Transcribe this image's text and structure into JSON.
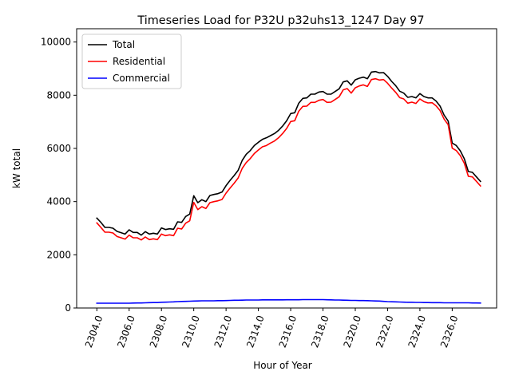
{
  "chart_data": {
    "type": "line",
    "title": "Timeseries Load for P32U p32uhs13_1247  Day 97",
    "xlabel": "Hour of Year",
    "ylabel": "kW total",
    "xlim": [
      2302.75,
      2328.75
    ],
    "ylim": [
      0,
      10500
    ],
    "xticks": [
      2304,
      2306,
      2308,
      2310,
      2312,
      2314,
      2316,
      2318,
      2320,
      2322,
      2324,
      2326
    ],
    "xtick_labels": [
      "2304.0",
      "2306.0",
      "2308.0",
      "2310.0",
      "2312.0",
      "2314.0",
      "2316.0",
      "2318.0",
      "2320.0",
      "2322.0",
      "2324.0",
      "2326.0"
    ],
    "yticks": [
      0,
      2000,
      4000,
      6000,
      8000,
      10000
    ],
    "ytick_labels": [
      "0",
      "2000",
      "4000",
      "6000",
      "8000",
      "10000"
    ],
    "legend_position": "top-left",
    "x_start": 2304.0,
    "x_step": 0.25,
    "series": [
      {
        "name": "Total",
        "color": "#000000",
        "values": [
          3380,
          3220,
          3030,
          3030,
          3000,
          2880,
          2830,
          2780,
          2940,
          2840,
          2840,
          2740,
          2870,
          2780,
          2810,
          2780,
          3010,
          2950,
          2980,
          2960,
          3240,
          3220,
          3440,
          3530,
          4220,
          3960,
          4070,
          4000,
          4230,
          4270,
          4300,
          4360,
          4600,
          4800,
          4980,
          5180,
          5550,
          5780,
          5920,
          6110,
          6230,
          6340,
          6400,
          6480,
          6560,
          6680,
          6840,
          7040,
          7310,
          7340,
          7700,
          7880,
          7900,
          8040,
          8040,
          8120,
          8140,
          8040,
          8040,
          8140,
          8240,
          8500,
          8540,
          8380,
          8580,
          8640,
          8680,
          8620,
          8870,
          8890,
          8840,
          8850,
          8710,
          8520,
          8360,
          8150,
          8080,
          7920,
          7950,
          7900,
          8060,
          7950,
          7900,
          7900,
          7780,
          7590,
          7250,
          7030,
          6200,
          6110,
          5910,
          5610,
          5130,
          5100,
          4930,
          4760
        ]
      },
      {
        "name": "Residential",
        "color": "#ff0000",
        "values": [
          3200,
          3030,
          2850,
          2850,
          2820,
          2690,
          2640,
          2590,
          2740,
          2640,
          2640,
          2560,
          2670,
          2570,
          2600,
          2570,
          2780,
          2720,
          2750,
          2720,
          3000,
          2970,
          3190,
          3280,
          3970,
          3700,
          3810,
          3740,
          3960,
          4000,
          4030,
          4080,
          4320,
          4510,
          4690,
          4890,
          5250,
          5470,
          5620,
          5810,
          5940,
          6060,
          6110,
          6200,
          6280,
          6400,
          6560,
          6750,
          7010,
          7040,
          7400,
          7580,
          7590,
          7730,
          7730,
          7810,
          7840,
          7730,
          7740,
          7840,
          7940,
          8200,
          8250,
          8080,
          8280,
          8350,
          8390,
          8330,
          8590,
          8620,
          8570,
          8590,
          8450,
          8270,
          8110,
          7910,
          7860,
          7700,
          7740,
          7690,
          7860,
          7760,
          7710,
          7720,
          7600,
          7420,
          7100,
          6890,
          6010,
          5920,
          5730,
          5440,
          4950,
          4930,
          4760,
          4590
        ]
      },
      {
        "name": "Commercial",
        "color": "#0000ff",
        "values": [
          180,
          180,
          180,
          180,
          180,
          180,
          180,
          180,
          180,
          185,
          190,
          190,
          195,
          200,
          205,
          205,
          215,
          220,
          225,
          230,
          240,
          245,
          250,
          255,
          260,
          265,
          270,
          270,
          270,
          270,
          275,
          275,
          280,
          285,
          290,
          290,
          295,
          300,
          300,
          300,
          300,
          305,
          305,
          305,
          305,
          305,
          305,
          310,
          310,
          310,
          310,
          315,
          315,
          315,
          315,
          315,
          315,
          310,
          305,
          300,
          300,
          295,
          290,
          285,
          285,
          280,
          280,
          275,
          270,
          265,
          260,
          250,
          240,
          235,
          230,
          225,
          220,
          215,
          215,
          210,
          210,
          205,
          205,
          200,
          200,
          200,
          195,
          195,
          195,
          195,
          195,
          195,
          195,
          190,
          190,
          185
        ]
      }
    ]
  }
}
